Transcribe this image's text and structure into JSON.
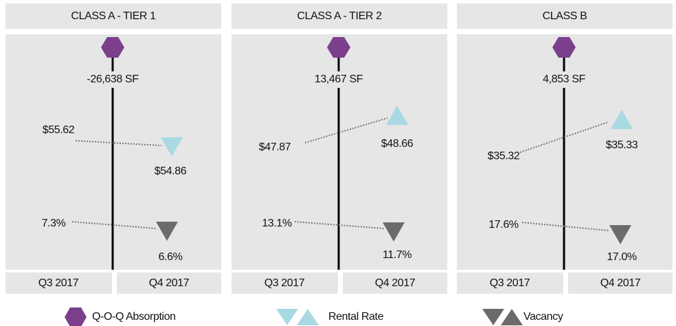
{
  "panels": [
    {
      "title": "CLASS A - TIER 1",
      "absorption": "-26,638 SF",
      "rent": {
        "prev": "$55.62",
        "curr": "$54.86"
      },
      "vacancy": {
        "prev": "7.3%",
        "curr": "6.6%"
      },
      "periods": [
        "Q3 2017",
        "Q4 2017"
      ]
    },
    {
      "title": "CLASS A - TIER 2",
      "absorption": "13,467 SF",
      "rent": {
        "prev": "$47.87",
        "curr": "$48.66"
      },
      "vacancy": {
        "prev": "13.1%",
        "curr": "11.7%"
      },
      "periods": [
        "Q3 2017",
        "Q4 2017"
      ]
    },
    {
      "title": "CLASS B",
      "absorption": "4,853 SF",
      "rent": {
        "prev": "$35.32",
        "curr": "$35.33"
      },
      "vacancy": {
        "prev": "17.6%",
        "curr": "17.0%"
      },
      "periods": [
        "Q3 2017",
        "Q4 2017"
      ]
    }
  ],
  "legend": [
    "Q-O-Q Absorption",
    "Rental Rate",
    "Vacancy"
  ]
}
